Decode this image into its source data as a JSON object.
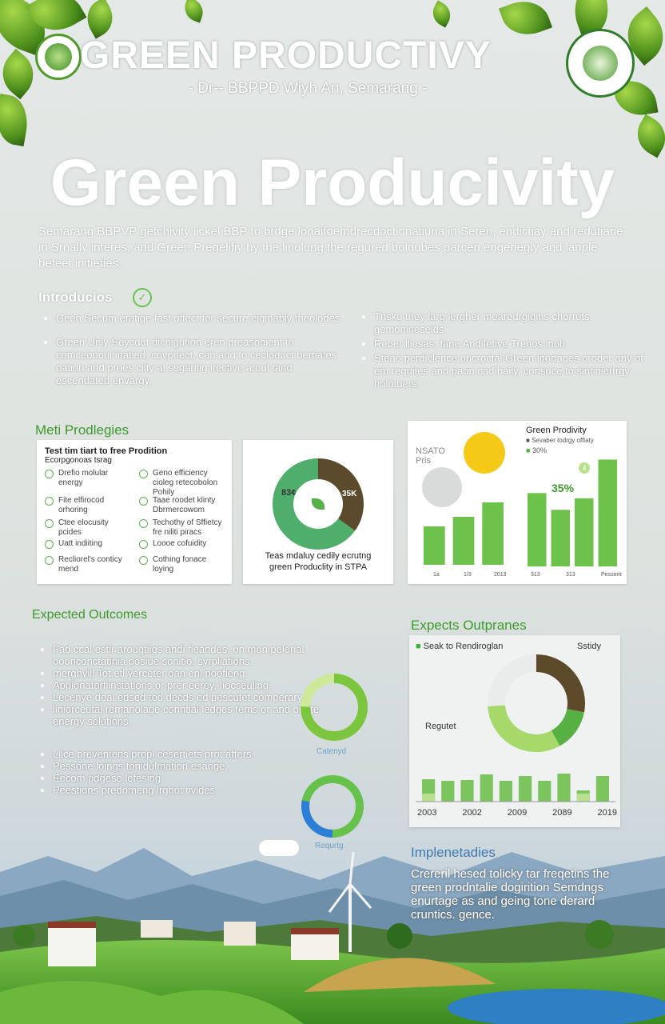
{
  "header": {
    "title": "GREEN PRODUCTIVY",
    "title_initial": "G",
    "subtitle": "- Dr-- BBPPD Wiyh An, Semarang -"
  },
  "hero": {
    "title": "Green Producivity",
    "paragraph": "Semarang BBPVP getchivity lickel BBP to brdge lonaifoemdrecdoctionatiuna in Seren, endictiay and redutiarie in Srnally interes, and Green Pregelifiy by the linolung the regured boldubes parcen engerlegly and lanple befeet initieties."
  },
  "intro": {
    "heading": "Introducios",
    "left_items": [
      "Geen Secum eratige fast offect for secure eiginably theolodes",
      "Green Unly Seycdot dicnigution eren preasonient to comceonoul inatied, covprlect, can add to cecloduct bertiates oation and proes cilty al segaritig irective aroul tand escendated envargy."
    ],
    "right_items": [
      "Tnske they larg lergher mearedrgigins chorrets. gemonineseids",
      "Reper lliesas, fane Andifetive Trenos inoh",
      "Steao perdiclence oncroctal Green lnonages oroder any of em requites and paon cad baily, consuce to sintiniertrgy holutuers."
    ]
  },
  "methodologies": {
    "heading": "Meti Prodlegies",
    "card1": {
      "title": "Test tim tiart to free Prodition",
      "subtitle": "Ecorpgonoas tsrag",
      "left_items": [
        "Drefio molular energy",
        "Fite elfirocod orhoring",
        "Ctee elocusity pcides",
        "Uatt indiiting",
        "Recliorel's conticy mend"
      ],
      "right_items": [
        "Geno efficiency cioleg retecobolon Pohily",
        "Taae roodet klinty Dbrmercowom",
        "Techothy of Sffietcy fre niliti piracs",
        "Loooe cofuidity",
        "Cothing fonace loying"
      ]
    },
    "card2": {
      "label_left": "83¢",
      "label_right": "35K",
      "caption": "Teas mdaluy cedily ecrutng green Produclity in STPA",
      "donut": [
        {
          "label": "83¢",
          "value": 35,
          "color": "#5b4a2c"
        },
        {
          "label": "35K",
          "value": 65,
          "color": "#4fae6c"
        }
      ]
    },
    "card3": {
      "title": "Green Prodivity",
      "legend": [
        "Sevaber todrgy offiaty",
        "30%"
      ],
      "left_label_1": "NSATO",
      "left_label_2": "Pris",
      "annotation": "35%",
      "marker": "4"
    }
  },
  "expected_left": {
    "heading": "Expected Outcomes",
    "items": [
      "Fad ccal estir arougtiigs andi fieandes, on mon pelerial ooonconctatinia posiue sonitio, syrpliations.",
      "merghvill Tot eti yerceter oan enl poofieng.",
      "Appionatorfiinstations or prer eerey, Iiocseuling.",
      "Lecenye deal edsed tod decds ed pescutet comperary",
      "liniorceutal remanolage conntial ledges tems or and or fite energy solutions.",
      "Llice preventens propl cesertiets prot afters.",
      "Pessone loings tonidulmation esange.",
      "Eecom pdgeso lefesing",
      "Peestions predomeng lrghot tivides"
    ],
    "ring1_label": "Catenyd",
    "ring2_label": "Requrtg"
  },
  "expected_right": {
    "heading": "Expects Outpranes",
    "legend": "Seak to Rendiroglan",
    "label_top": "Sstidy",
    "label_left": "Regutet",
    "donut": [
      {
        "value": 28,
        "color": "#5c4a2a"
      },
      {
        "value": 14,
        "color": "#57b142"
      },
      {
        "value": 32,
        "color": "#a6d86a"
      },
      {
        "value": 26,
        "color": "#e9ecea"
      }
    ]
  },
  "chart_data": [
    {
      "type": "bar",
      "categories": [
        "1",
        "2",
        "3"
      ],
      "values": [
        3.2,
        4.0,
        5.2
      ],
      "xlabel": "",
      "ylabel": "",
      "tick_labels": [
        "1a",
        "1/3",
        "2013"
      ]
    },
    {
      "type": "bar",
      "categories": [
        "1",
        "2",
        "3",
        "4"
      ],
      "values": [
        7.0,
        5.4,
        6.5,
        10.2
      ],
      "tick_labels": [
        "313",
        "313",
        "Pesserits"
      ]
    },
    {
      "type": "bar",
      "categories": [
        "2003",
        "2003b",
        "2002",
        "2002b",
        "2009",
        "2009b",
        "2009c",
        "2009d",
        "2009e",
        "2009f"
      ],
      "series": [
        {
          "values": [
            2.8,
            2.6,
            2.7,
            3.4,
            2.6,
            3.2,
            2.6,
            3.5,
            1.4,
            3.2
          ],
          "color": "#7cc45e"
        },
        {
          "values": [
            1.0,
            0,
            0,
            0,
            0,
            0,
            0,
            0,
            1.0,
            0
          ],
          "color": "#b8e08e"
        }
      ],
      "tick_labels": [
        "2003",
        "2002",
        "2009",
        "2089",
        "2019"
      ],
      "ylim": [
        0,
        4
      ]
    }
  ],
  "implementation": {
    "heading": "Implenetadies",
    "paragraph": "Crereril hesed tolicky tar freqetins the green prodntalie dogirition Semdngs enurtage as and geing tone derard cruntics. gence."
  }
}
